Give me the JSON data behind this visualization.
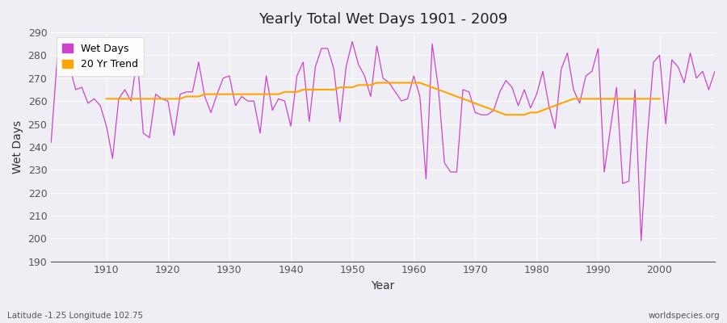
{
  "title": "Yearly Total Wet Days 1901 - 2009",
  "xlabel": "Year",
  "ylabel": "Wet Days",
  "subtitle": "Latitude -1.25 Longitude 102.75",
  "watermark": "worldspecies.org",
  "years": [
    1901,
    1902,
    1903,
    1904,
    1905,
    1906,
    1907,
    1908,
    1909,
    1910,
    1911,
    1912,
    1913,
    1914,
    1915,
    1916,
    1917,
    1918,
    1919,
    1920,
    1921,
    1922,
    1923,
    1924,
    1925,
    1926,
    1927,
    1928,
    1929,
    1930,
    1931,
    1932,
    1933,
    1934,
    1935,
    1936,
    1937,
    1938,
    1939,
    1940,
    1941,
    1942,
    1943,
    1944,
    1945,
    1946,
    1947,
    1948,
    1949,
    1950,
    1951,
    1952,
    1953,
    1954,
    1955,
    1956,
    1957,
    1958,
    1959,
    1960,
    1961,
    1962,
    1963,
    1964,
    1965,
    1966,
    1967,
    1968,
    1969,
    1970,
    1971,
    1972,
    1973,
    1974,
    1975,
    1976,
    1977,
    1978,
    1979,
    1980,
    1981,
    1982,
    1983,
    1984,
    1985,
    1986,
    1987,
    1988,
    1989,
    1990,
    1991,
    1992,
    1993,
    1994,
    1995,
    1996,
    1997,
    1998,
    1999,
    2000,
    2001,
    2002,
    2003,
    2004,
    2005,
    2006,
    2007,
    2008,
    2009
  ],
  "wet_days": [
    242,
    279,
    277,
    275,
    265,
    266,
    259,
    261,
    258,
    249,
    235,
    261,
    265,
    260,
    279,
    246,
    244,
    263,
    261,
    260,
    245,
    263,
    264,
    264,
    277,
    262,
    255,
    263,
    270,
    271,
    258,
    262,
    260,
    260,
    246,
    271,
    256,
    261,
    260,
    249,
    271,
    277,
    251,
    275,
    283,
    283,
    274,
    251,
    275,
    286,
    276,
    271,
    262,
    284,
    270,
    268,
    264,
    260,
    261,
    271,
    262,
    226,
    285,
    266,
    233,
    229,
    229,
    265,
    264,
    255,
    254,
    254,
    256,
    264,
    269,
    266,
    258,
    265,
    257,
    263,
    273,
    258,
    248,
    274,
    281,
    265,
    259,
    271,
    273,
    283,
    229,
    248,
    266,
    224,
    225,
    265,
    199,
    244,
    277,
    280,
    250,
    278,
    275,
    268,
    281,
    270,
    273,
    265,
    273
  ],
  "trend_years": [
    1910,
    1911,
    1912,
    1913,
    1914,
    1915,
    1916,
    1917,
    1918,
    1919,
    1920,
    1921,
    1922,
    1923,
    1924,
    1925,
    1926,
    1927,
    1928,
    1929,
    1930,
    1931,
    1932,
    1933,
    1934,
    1935,
    1936,
    1937,
    1938,
    1939,
    1940,
    1941,
    1942,
    1943,
    1944,
    1945,
    1946,
    1947,
    1948,
    1949,
    1950,
    1951,
    1952,
    1953,
    1954,
    1955,
    1956,
    1957,
    1958,
    1959,
    1960,
    1961,
    1962,
    1963,
    1964,
    1965,
    1966,
    1967,
    1968,
    1969,
    1970,
    1971,
    1972,
    1973,
    1974,
    1975,
    1976,
    1977,
    1978,
    1979,
    1980,
    1981,
    1982,
    1983,
    1984,
    1985,
    1986,
    1987,
    1988,
    1989,
    1990,
    1991,
    1992,
    1993,
    1994,
    1995,
    1996,
    1997,
    1998,
    1999,
    2000
  ],
  "trend_values": [
    261,
    261,
    261,
    261,
    261,
    261,
    261,
    261,
    261,
    261,
    261,
    261,
    261,
    262,
    262,
    262,
    263,
    263,
    263,
    263,
    263,
    263,
    263,
    263,
    263,
    263,
    263,
    263,
    263,
    264,
    264,
    264,
    265,
    265,
    265,
    265,
    265,
    265,
    266,
    266,
    266,
    267,
    267,
    267,
    268,
    268,
    268,
    268,
    268,
    268,
    268,
    268,
    267,
    266,
    265,
    264,
    263,
    262,
    261,
    260,
    259,
    258,
    257,
    256,
    255,
    254,
    254,
    254,
    254,
    255,
    255,
    256,
    257,
    258,
    259,
    260,
    261,
    261,
    261,
    261,
    261,
    261,
    261,
    261,
    261,
    261,
    261,
    261,
    261,
    261,
    261
  ],
  "wet_days_color": "#CC44CC",
  "trend_color": "#FFA500",
  "plot_bg_color": "#EEEEF4",
  "fig_bg_color": "#EEEEF4",
  "ylim": [
    190,
    290
  ],
  "yticks": [
    190,
    200,
    210,
    220,
    230,
    240,
    250,
    260,
    270,
    280,
    290
  ],
  "xticks": [
    1910,
    1920,
    1930,
    1940,
    1950,
    1960,
    1970,
    1980,
    1990,
    2000
  ],
  "xlim": [
    1901,
    2009
  ]
}
